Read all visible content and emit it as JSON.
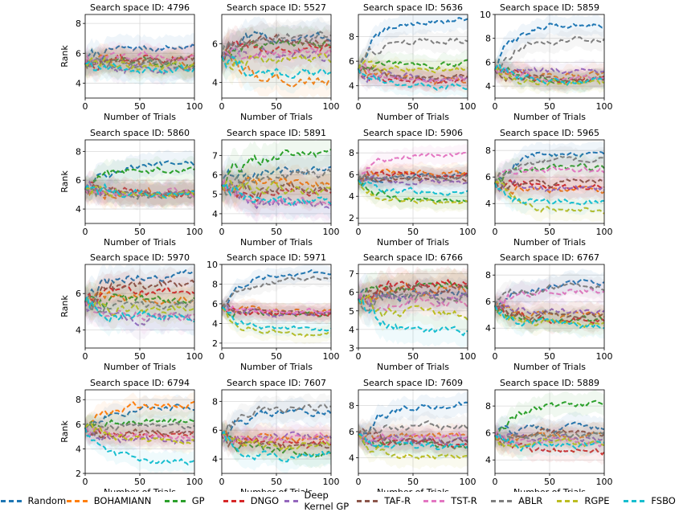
{
  "colors": {
    "Random": "#1f77b4",
    "BOHAMIANN": "#ff7f0e",
    "GP": "#2ca02c",
    "DNGO": "#d62728",
    "Deep Kernel GP": "#9467bd",
    "TAF-R": "#8c564b",
    "TST-R": "#e377c2",
    "ABLR": "#7f7f7f",
    "RGPE": "#bcbd22",
    "FSBO": "#17becf"
  },
  "legend": [
    "Random",
    "BOHAMIANN",
    "GP",
    "DNGO",
    "Deep Kernel GP",
    "TAF-R",
    "TST-R",
    "ABLR",
    "RGPE",
    "FSBO"
  ],
  "chart_data": [
    {
      "type": "line",
      "title": "Search space ID: 4796",
      "xlabel": "Number of Trials",
      "ylabel": "Rank",
      "xlim": [
        0,
        100
      ],
      "ylim": [
        3,
        8.6
      ],
      "yticks": [
        4,
        6,
        8
      ],
      "xticks": [
        0,
        50,
        100
      ],
      "grid": true,
      "series": [
        {
          "name": "Random",
          "final": 6.4
        },
        {
          "name": "BOHAMIANN",
          "final": 5.3
        },
        {
          "name": "GP",
          "final": 5.4
        },
        {
          "name": "DNGO",
          "final": 5.7
        },
        {
          "name": "Deep Kernel GP",
          "final": 5.0
        },
        {
          "name": "TAF-R",
          "final": 5.6
        },
        {
          "name": "TST-R",
          "final": 5.8
        },
        {
          "name": "ABLR",
          "final": 5.2
        },
        {
          "name": "RGPE",
          "final": 5.2
        },
        {
          "name": "FSBO",
          "final": 4.9
        }
      ]
    },
    {
      "type": "line",
      "title": "Search space ID: 5527",
      "xlabel": "Number of Trials",
      "ylabel": "",
      "xlim": [
        0,
        100
      ],
      "ylim": [
        3.2,
        7.5
      ],
      "yticks": [
        4,
        6
      ],
      "xticks": [
        0,
        50,
        100
      ],
      "grid": true,
      "series": [
        {
          "name": "Random",
          "final": 6.3
        },
        {
          "name": "BOHAMIANN",
          "final": 4.1
        },
        {
          "name": "GP",
          "final": 6.0
        },
        {
          "name": "DNGO",
          "final": 5.8
        },
        {
          "name": "Deep Kernel GP",
          "final": 5.4
        },
        {
          "name": "TAF-R",
          "final": 6.2
        },
        {
          "name": "TST-R",
          "final": 5.6
        },
        {
          "name": "ABLR",
          "final": 6.4
        },
        {
          "name": "RGPE",
          "final": 5.2
        },
        {
          "name": "FSBO",
          "final": 4.4
        }
      ]
    },
    {
      "type": "line",
      "title": "Search space ID: 5636",
      "xlabel": "Number of Trials",
      "ylabel": "",
      "xlim": [
        0,
        100
      ],
      "ylim": [
        3,
        9.8
      ],
      "yticks": [
        4,
        6,
        8
      ],
      "xticks": [
        0,
        50,
        100
      ],
      "grid": true,
      "series": [
        {
          "name": "Random",
          "final": 9.3
        },
        {
          "name": "BOHAMIANN",
          "final": 4.5
        },
        {
          "name": "GP",
          "final": 5.8
        },
        {
          "name": "DNGO",
          "final": 4.4
        },
        {
          "name": "Deep Kernel GP",
          "final": 4.7
        },
        {
          "name": "TAF-R",
          "final": 4.6
        },
        {
          "name": "TST-R",
          "final": 4.5
        },
        {
          "name": "ABLR",
          "final": 7.7
        },
        {
          "name": "RGPE",
          "final": 5.4
        },
        {
          "name": "FSBO",
          "final": 4.0
        }
      ]
    },
    {
      "type": "line",
      "title": "Search space ID: 5859",
      "xlabel": "Number of Trials",
      "ylabel": "",
      "xlim": [
        0,
        100
      ],
      "ylim": [
        3,
        10
      ],
      "yticks": [
        4,
        6,
        8,
        10
      ],
      "xticks": [
        0,
        50,
        100
      ],
      "grid": true,
      "series": [
        {
          "name": "Random",
          "final": 9.2
        },
        {
          "name": "BOHAMIANN",
          "final": 4.9
        },
        {
          "name": "GP",
          "final": 4.5
        },
        {
          "name": "DNGO",
          "final": 4.5
        },
        {
          "name": "Deep Kernel GP",
          "final": 5.3
        },
        {
          "name": "TAF-R",
          "final": 4.6
        },
        {
          "name": "TST-R",
          "final": 4.7
        },
        {
          "name": "ABLR",
          "final": 8.0
        },
        {
          "name": "RGPE",
          "final": 4.2
        },
        {
          "name": "FSBO",
          "final": 4.4
        }
      ]
    },
    {
      "type": "line",
      "title": "Search space ID: 5860",
      "xlabel": "Number of Trials",
      "ylabel": "Rank",
      "xlim": [
        0,
        100
      ],
      "ylim": [
        3,
        8.8
      ],
      "yticks": [
        4,
        6,
        8
      ],
      "xticks": [
        0,
        50,
        100
      ],
      "grid": true,
      "series": [
        {
          "name": "Random",
          "final": 7.0
        },
        {
          "name": "BOHAMIANN",
          "final": 5.1
        },
        {
          "name": "GP",
          "final": 6.8
        },
        {
          "name": "DNGO",
          "final": 5.1
        },
        {
          "name": "Deep Kernel GP",
          "final": 5.1
        },
        {
          "name": "TAF-R",
          "final": 5.1
        },
        {
          "name": "TST-R",
          "final": 5.1
        },
        {
          "name": "ABLR",
          "final": 5.1
        },
        {
          "name": "RGPE",
          "final": 5.1
        },
        {
          "name": "FSBO",
          "final": 5.1
        }
      ]
    },
    {
      "type": "line",
      "title": "Search space ID: 5891",
      "xlabel": "Number of Trials",
      "ylabel": "",
      "xlim": [
        0,
        100
      ],
      "ylim": [
        3.5,
        7.8
      ],
      "yticks": [
        4,
        5,
        6,
        7
      ],
      "xticks": [
        0,
        50,
        100
      ],
      "grid": true,
      "series": [
        {
          "name": "Random",
          "final": 6.2
        },
        {
          "name": "BOHAMIANN",
          "final": 5.6
        },
        {
          "name": "GP",
          "final": 7.0
        },
        {
          "name": "DNGO",
          "final": 5.1
        },
        {
          "name": "Deep Kernel GP",
          "final": 4.6
        },
        {
          "name": "TAF-R",
          "final": 5.3
        },
        {
          "name": "TST-R",
          "final": 4.7
        },
        {
          "name": "ABLR",
          "final": 5.9
        },
        {
          "name": "RGPE",
          "final": 5.2
        },
        {
          "name": "FSBO",
          "final": 4.6
        }
      ]
    },
    {
      "type": "line",
      "title": "Search space ID: 5906",
      "xlabel": "Number of Trials",
      "ylabel": "",
      "xlim": [
        0,
        100
      ],
      "ylim": [
        1.5,
        9.2
      ],
      "yticks": [
        2,
        4,
        6,
        8
      ],
      "xticks": [
        0,
        50,
        100
      ],
      "grid": true,
      "series": [
        {
          "name": "Random",
          "final": 6.0
        },
        {
          "name": "BOHAMIANN",
          "final": 6.2
        },
        {
          "name": "GP",
          "final": 3.6
        },
        {
          "name": "DNGO",
          "final": 6.0
        },
        {
          "name": "Deep Kernel GP",
          "final": 5.4
        },
        {
          "name": "TAF-R",
          "final": 5.6
        },
        {
          "name": "TST-R",
          "final": 7.8
        },
        {
          "name": "ABLR",
          "final": 5.8
        },
        {
          "name": "RGPE",
          "final": 3.4
        },
        {
          "name": "FSBO",
          "final": 4.4
        }
      ]
    },
    {
      "type": "line",
      "title": "Search space ID: 5965",
      "xlabel": "Number of Trials",
      "ylabel": "",
      "xlim": [
        0,
        100
      ],
      "ylim": [
        2.5,
        8.8
      ],
      "yticks": [
        4,
        6,
        8
      ],
      "xticks": [
        0,
        50,
        100
      ],
      "grid": true,
      "series": [
        {
          "name": "Random",
          "final": 7.9
        },
        {
          "name": "BOHAMIANN",
          "final": 5.0
        },
        {
          "name": "GP",
          "final": 6.8
        },
        {
          "name": "DNGO",
          "final": 5.3
        },
        {
          "name": "Deep Kernel GP",
          "final": 5.1
        },
        {
          "name": "TAF-R",
          "final": 5.6
        },
        {
          "name": "TST-R",
          "final": 6.6
        },
        {
          "name": "ABLR",
          "final": 7.3
        },
        {
          "name": "RGPE",
          "final": 3.4
        },
        {
          "name": "FSBO",
          "final": 4.1
        }
      ]
    },
    {
      "type": "line",
      "title": "Search space ID: 5970",
      "xlabel": "Number of Trials",
      "ylabel": "Rank",
      "xlim": [
        0,
        100
      ],
      "ylim": [
        3,
        7.6
      ],
      "yticks": [
        4,
        6
      ],
      "xticks": [
        0,
        50,
        100
      ],
      "grid": true,
      "series": [
        {
          "name": "Random",
          "final": 7.0
        },
        {
          "name": "BOHAMIANN",
          "final": 5.8
        },
        {
          "name": "GP",
          "final": 5.6
        },
        {
          "name": "DNGO",
          "final": 6.2
        },
        {
          "name": "Deep Kernel GP",
          "final": 4.6
        },
        {
          "name": "TAF-R",
          "final": 6.5
        },
        {
          "name": "TST-R",
          "final": 4.8
        },
        {
          "name": "ABLR",
          "final": 5.4
        },
        {
          "name": "RGPE",
          "final": 5.1
        },
        {
          "name": "FSBO",
          "final": 4.7
        }
      ]
    },
    {
      "type": "line",
      "title": "Search space ID: 5971",
      "xlabel": "Number of Trials",
      "ylabel": "",
      "xlim": [
        0,
        100
      ],
      "ylim": [
        1.5,
        10
      ],
      "yticks": [
        2,
        4,
        6,
        8,
        10
      ],
      "xticks": [
        0,
        50,
        100
      ],
      "grid": true,
      "series": [
        {
          "name": "Random",
          "final": 9.2
        },
        {
          "name": "BOHAMIANN",
          "final": 5.2
        },
        {
          "name": "GP",
          "final": 4.9
        },
        {
          "name": "DNGO",
          "final": 4.9
        },
        {
          "name": "Deep Kernel GP",
          "final": 5.0
        },
        {
          "name": "TAF-R",
          "final": 5.1
        },
        {
          "name": "TST-R",
          "final": 5.2
        },
        {
          "name": "ABLR",
          "final": 8.5
        },
        {
          "name": "RGPE",
          "final": 3.0
        },
        {
          "name": "FSBO",
          "final": 3.4
        }
      ]
    },
    {
      "type": "line",
      "title": "Search space ID: 6766",
      "xlabel": "Number of Trials",
      "ylabel": "",
      "xlim": [
        0,
        100
      ],
      "ylim": [
        3,
        7.5
      ],
      "yticks": [
        3,
        4,
        5,
        6,
        7
      ],
      "xticks": [
        0,
        50,
        100
      ],
      "grid": true,
      "series": [
        {
          "name": "Random",
          "final": 6.0
        },
        {
          "name": "BOHAMIANN",
          "final": 6.2
        },
        {
          "name": "GP",
          "final": 6.4
        },
        {
          "name": "DNGO",
          "final": 6.5
        },
        {
          "name": "Deep Kernel GP",
          "final": 5.7
        },
        {
          "name": "TAF-R",
          "final": 6.3
        },
        {
          "name": "TST-R",
          "final": 5.5
        },
        {
          "name": "ABLR",
          "final": 5.9
        },
        {
          "name": "RGPE",
          "final": 4.8
        },
        {
          "name": "FSBO",
          "final": 3.9
        }
      ]
    },
    {
      "type": "line",
      "title": "Search space ID: 6767",
      "xlabel": "Number of Trials",
      "ylabel": "",
      "xlim": [
        0,
        100
      ],
      "ylim": [
        2.5,
        8.8
      ],
      "yticks": [
        4,
        6,
        8
      ],
      "xticks": [
        0,
        50,
        100
      ],
      "grid": true,
      "series": [
        {
          "name": "Random",
          "final": 7.4
        },
        {
          "name": "BOHAMIANN",
          "final": 5.0
        },
        {
          "name": "GP",
          "final": 4.7
        },
        {
          "name": "DNGO",
          "final": 4.6
        },
        {
          "name": "Deep Kernel GP",
          "final": 5.3
        },
        {
          "name": "TAF-R",
          "final": 4.9
        },
        {
          "name": "TST-R",
          "final": 6.8
        },
        {
          "name": "ABLR",
          "final": 7.1
        },
        {
          "name": "RGPE",
          "final": 4.4
        },
        {
          "name": "FSBO",
          "final": 4.3
        }
      ]
    },
    {
      "type": "line",
      "title": "Search space ID: 6794",
      "xlabel": "Number of Trials",
      "ylabel": "Rank",
      "xlim": [
        0,
        100
      ],
      "ylim": [
        2,
        8.8
      ],
      "yticks": [
        2,
        4,
        6,
        8
      ],
      "xticks": [
        0,
        50,
        100
      ],
      "grid": true,
      "series": [
        {
          "name": "Random",
          "final": 7.4
        },
        {
          "name": "BOHAMIANN",
          "final": 7.6
        },
        {
          "name": "GP",
          "final": 6.3
        },
        {
          "name": "DNGO",
          "final": 5.2
        },
        {
          "name": "Deep Kernel GP",
          "final": 4.6
        },
        {
          "name": "TAF-R",
          "final": 5.4
        },
        {
          "name": "TST-R",
          "final": 5.0
        },
        {
          "name": "ABLR",
          "final": 5.9
        },
        {
          "name": "RGPE",
          "final": 4.8
        },
        {
          "name": "FSBO",
          "final": 2.9
        }
      ]
    },
    {
      "type": "line",
      "title": "Search space ID: 7607",
      "xlabel": "Number of Trials",
      "ylabel": "",
      "xlim": [
        0,
        100
      ],
      "ylim": [
        3,
        8.8
      ],
      "yticks": [
        4,
        6,
        8
      ],
      "xticks": [
        0,
        50,
        100
      ],
      "grid": true,
      "series": [
        {
          "name": "Random",
          "final": 7.3
        },
        {
          "name": "BOHAMIANN",
          "final": 5.4
        },
        {
          "name": "GP",
          "final": 4.4
        },
        {
          "name": "DNGO",
          "final": 5.0
        },
        {
          "name": "Deep Kernel GP",
          "final": 5.5
        },
        {
          "name": "TAF-R",
          "final": 4.8
        },
        {
          "name": "TST-R",
          "final": 5.4
        },
        {
          "name": "ABLR",
          "final": 7.6
        },
        {
          "name": "RGPE",
          "final": 4.9
        },
        {
          "name": "FSBO",
          "final": 4.2
        }
      ]
    },
    {
      "type": "line",
      "title": "Search space ID: 7609",
      "xlabel": "Number of Trials",
      "ylabel": "",
      "xlim": [
        0,
        100
      ],
      "ylim": [
        2.8,
        9.2
      ],
      "yticks": [
        4,
        6,
        8
      ],
      "xticks": [
        0,
        50,
        100
      ],
      "grid": true,
      "series": [
        {
          "name": "Random",
          "final": 8.0
        },
        {
          "name": "BOHAMIANN",
          "final": 5.6
        },
        {
          "name": "GP",
          "final": 4.9
        },
        {
          "name": "DNGO",
          "final": 5.1
        },
        {
          "name": "Deep Kernel GP",
          "final": 5.3
        },
        {
          "name": "TAF-R",
          "final": 5.2
        },
        {
          "name": "TST-R",
          "final": 5.6
        },
        {
          "name": "ABLR",
          "final": 6.4
        },
        {
          "name": "RGPE",
          "final": 4.0
        },
        {
          "name": "FSBO",
          "final": 4.8
        }
      ]
    },
    {
      "type": "line",
      "title": "Search space ID: 5889",
      "xlabel": "Number of Trials",
      "ylabel": "",
      "xlim": [
        0,
        100
      ],
      "ylim": [
        3,
        9.2
      ],
      "yticks": [
        4,
        6,
        8
      ],
      "xticks": [
        0,
        50,
        100
      ],
      "grid": true,
      "series": [
        {
          "name": "Random",
          "final": 6.4
        },
        {
          "name": "BOHAMIANN",
          "final": 5.7
        },
        {
          "name": "GP",
          "final": 8.1
        },
        {
          "name": "DNGO",
          "final": 4.6
        },
        {
          "name": "Deep Kernel GP",
          "final": 5.5
        },
        {
          "name": "TAF-R",
          "final": 6.0
        },
        {
          "name": "TST-R",
          "final": 5.3
        },
        {
          "name": "ABLR",
          "final": 5.8
        },
        {
          "name": "RGPE",
          "final": 5.2
        },
        {
          "name": "FSBO",
          "final": 5.0
        }
      ]
    }
  ]
}
